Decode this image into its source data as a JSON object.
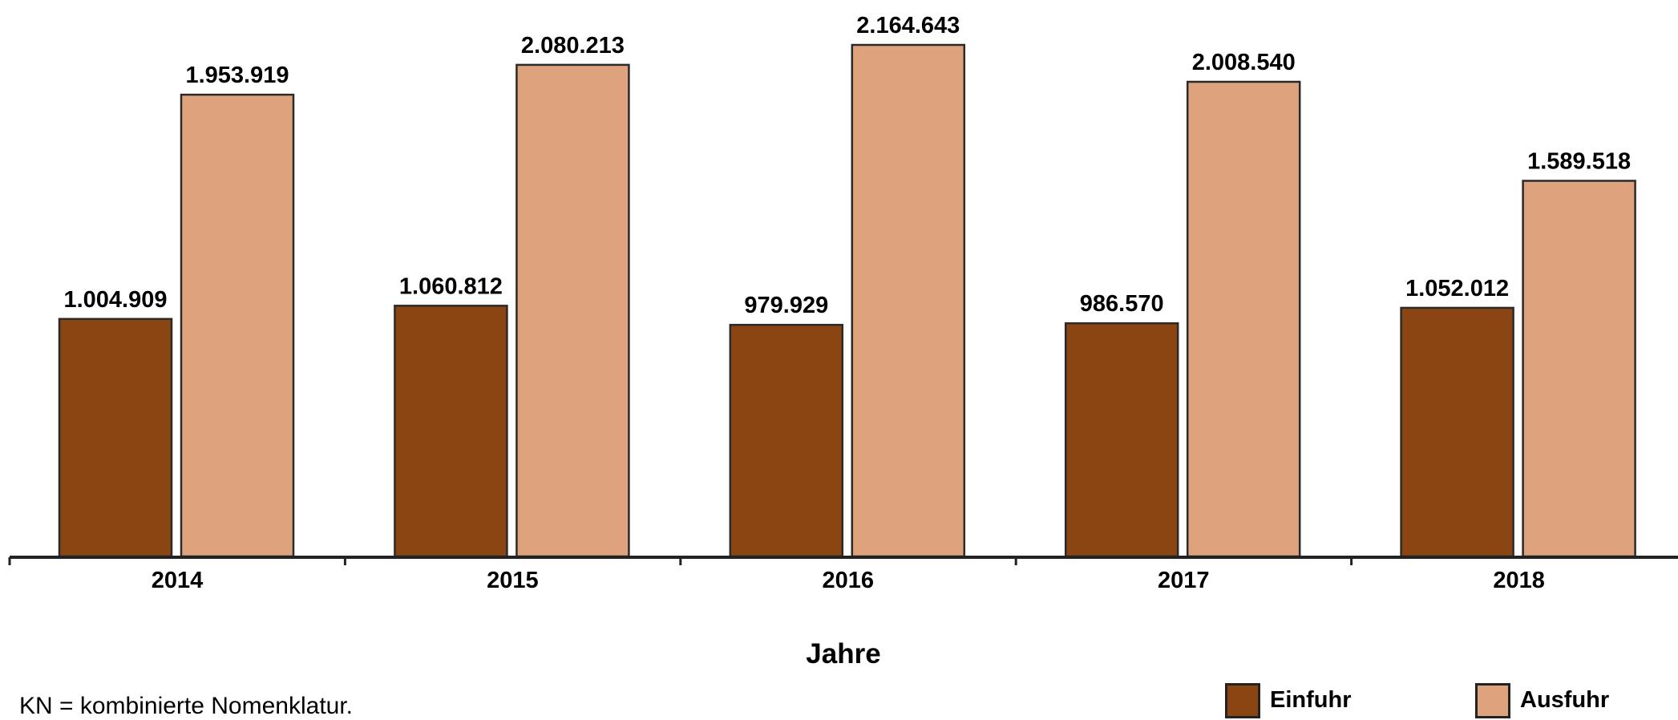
{
  "chart_data": {
    "type": "bar",
    "categories": [
      "2014",
      "2015",
      "2016",
      "2017",
      "2018"
    ],
    "series": [
      {
        "name": "Einfuhr",
        "color": "#8b4513",
        "values": [
          1004909,
          1060812,
          979929,
          986570,
          1052012
        ],
        "labels": [
          "1.004.909",
          "1.060.812",
          "979.929",
          "986.570",
          "1.052.012"
        ]
      },
      {
        "name": "Ausfuhr",
        "color": "#dea27d",
        "values": [
          1953919,
          2080213,
          2164643,
          2008540,
          1589518
        ],
        "labels": [
          "1.953.919",
          "2.080.213",
          "2.164.643",
          "2.008.540",
          "1.589.518"
        ]
      }
    ],
    "xlabel": "Jahre",
    "ylabel": "",
    "ylim": [
      0,
      2164643
    ],
    "grid": false,
    "legend_position": "bottom-right"
  },
  "footnote": "KN = kombinierte Nomenklatur."
}
